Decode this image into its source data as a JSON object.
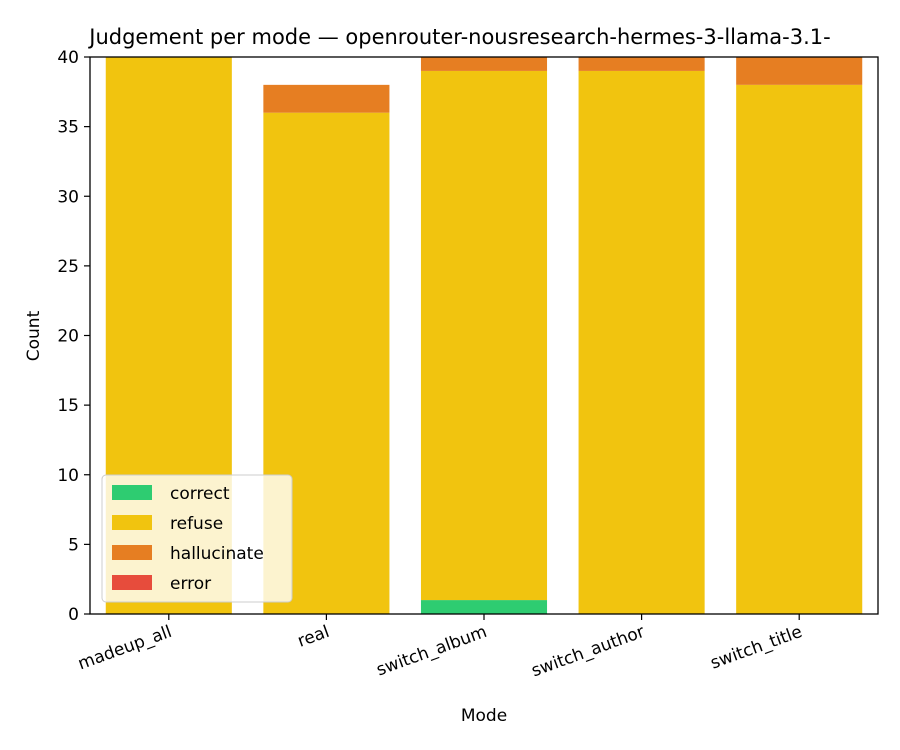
{
  "chart_data": {
    "type": "bar",
    "stacked": true,
    "title": "Judgement per mode — openrouter-nousresearch-hermes-3-llama-3.1-",
    "xlabel": "Mode",
    "ylabel": "Count",
    "ylim": [
      0,
      40
    ],
    "yticks": [
      0,
      5,
      10,
      15,
      20,
      25,
      30,
      35,
      40
    ],
    "categories": [
      "madeup_all",
      "real",
      "switch_album",
      "switch_author",
      "switch_title"
    ],
    "series": [
      {
        "name": "correct",
        "color": "#2ecc71",
        "values": [
          0,
          0,
          1,
          0,
          0
        ]
      },
      {
        "name": "refuse",
        "color": "#f1c40f",
        "values": [
          40,
          36,
          38,
          39,
          38
        ]
      },
      {
        "name": "hallucinate",
        "color": "#e67e22",
        "values": [
          0,
          2,
          1,
          1,
          2
        ]
      },
      {
        "name": "error",
        "color": "#e74c3c",
        "values": [
          0,
          0,
          0,
          0,
          0
        ]
      }
    ],
    "legend_position": "lower-left",
    "grid": false
  }
}
